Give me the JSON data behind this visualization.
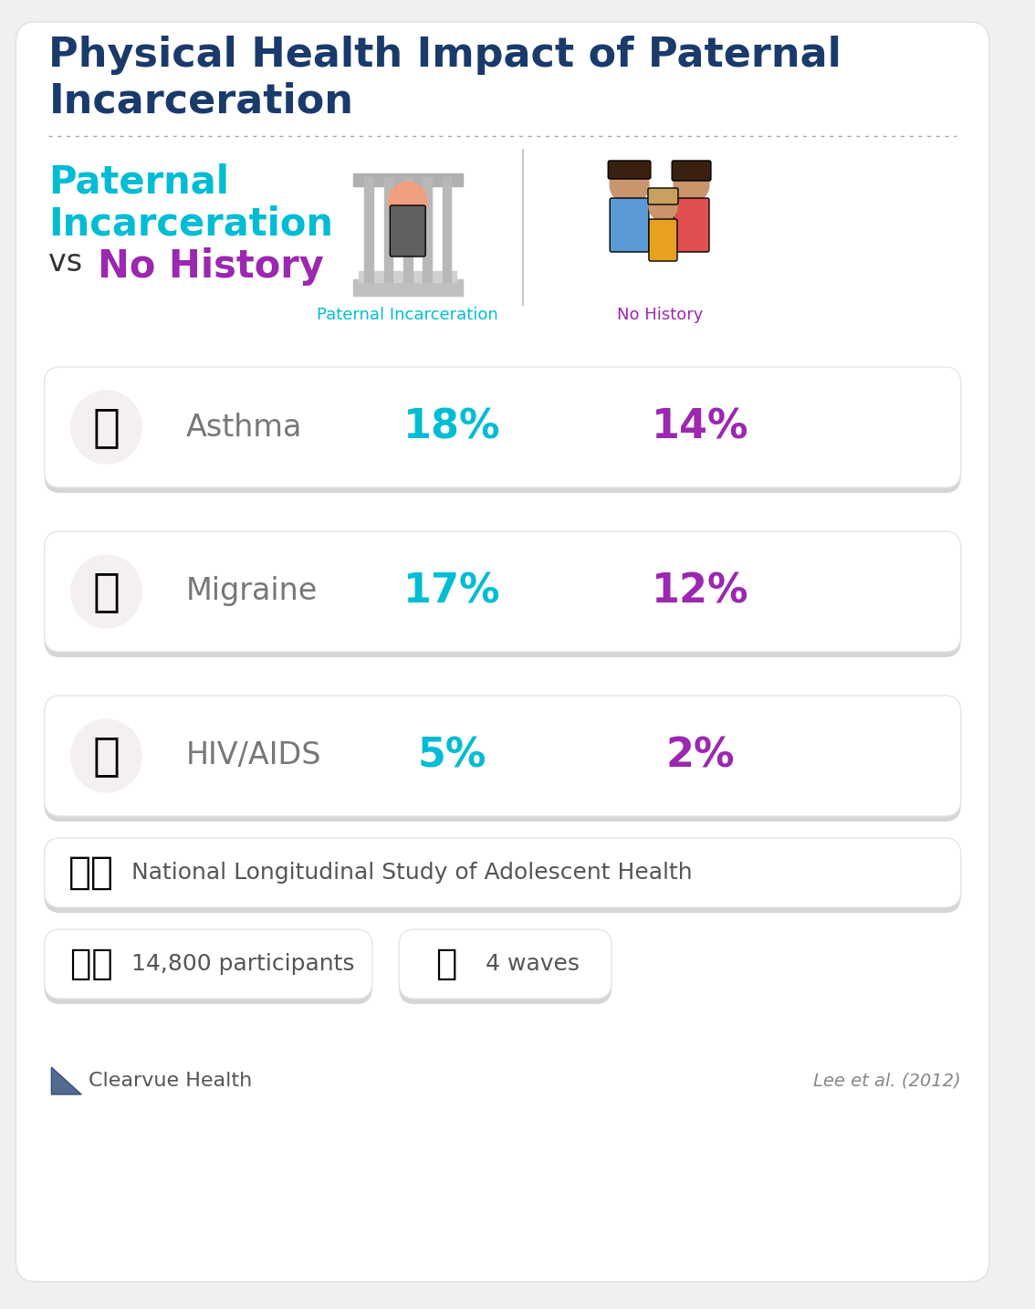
{
  "title_line1": "Physical Health Impact of Paternal",
  "title_line2": "Incarceration",
  "title_color": "#1a3a6b",
  "subtitle_cyan_line1": "Paternal",
  "subtitle_cyan_line2": "Incarceration",
  "subtitle_vs": "vs",
  "subtitle_purple": "No History",
  "cyan_color": "#00bcd4",
  "purple_color": "#9c27b0",
  "dark_color": "#333333",
  "label_cyan": "Paternal Incarceration",
  "label_purple": "No History",
  "conditions": [
    "Asthma",
    "Migraine",
    "HIV/AIDS"
  ],
  "values_cyan": [
    "18%",
    "17%",
    "5%"
  ],
  "values_purple": [
    "14%",
    "12%",
    "2%"
  ],
  "background_color": "#f0f0f0",
  "source_text": "National Longitudinal Study of Adolescent Health",
  "participants_text": "14,800 participants",
  "waves_text": "4 waves",
  "brand_text": "Clearvue Health",
  "citation_text": "Lee et al. (2012)"
}
